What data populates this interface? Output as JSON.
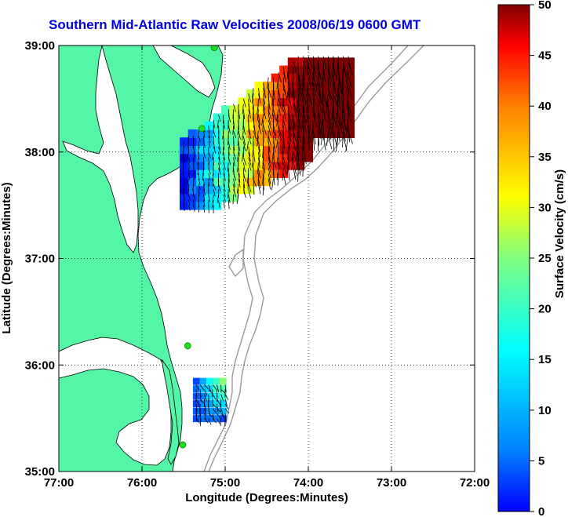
{
  "title": "Southern Mid-Atlantic Raw Velocities 2008/06/19 0600 GMT",
  "x_axis": {
    "label": "Longitude (Degrees:Minutes)",
    "ticks": [
      "77:00",
      "76:00",
      "75:00",
      "74:00",
      "73:00",
      "72:00"
    ]
  },
  "y_axis": {
    "label": "Latitude (Degrees:Minutes)",
    "ticks": [
      "39:00",
      "38:00",
      "37:00",
      "36:00",
      "35:00"
    ]
  },
  "colorbar": {
    "label": "Surface Velocity (cm/s)",
    "ticks": [
      "50",
      "45",
      "40",
      "35",
      "30",
      "25",
      "20",
      "15",
      "10",
      "5",
      "0"
    ],
    "min": 0,
    "max": 50,
    "colormap": "jet"
  },
  "colors": {
    "land": "#55f5a8",
    "water": "#ffffff",
    "coastline": "#000000",
    "bathymetry": "#9a9a9a",
    "title": "#0000e0",
    "station_marker": "#22dd22",
    "grid": "#000000"
  },
  "chart_data": {
    "type": "map",
    "lon_range": [
      -77.0,
      -72.0
    ],
    "lat_range": [
      35.0,
      39.0
    ],
    "grid": "dotted",
    "stations": [
      {
        "lon": -75.13,
        "lat": 38.98
      },
      {
        "lon": -75.28,
        "lat": 38.22
      },
      {
        "lon": -75.45,
        "lat": 36.18
      },
      {
        "lon": -75.51,
        "lat": 35.25
      }
    ],
    "velocity_regions": [
      {
        "name": "northern",
        "lon_range": [
          -75.5,
          -73.5
        ],
        "lat_range": [
          37.5,
          38.9
        ],
        "speed_range": [
          0,
          50
        ]
      },
      {
        "name": "southern",
        "lon_range": [
          -75.35,
          -75.0
        ],
        "lat_range": [
          35.5,
          35.85
        ],
        "speed_range": [
          10,
          30
        ]
      }
    ]
  }
}
